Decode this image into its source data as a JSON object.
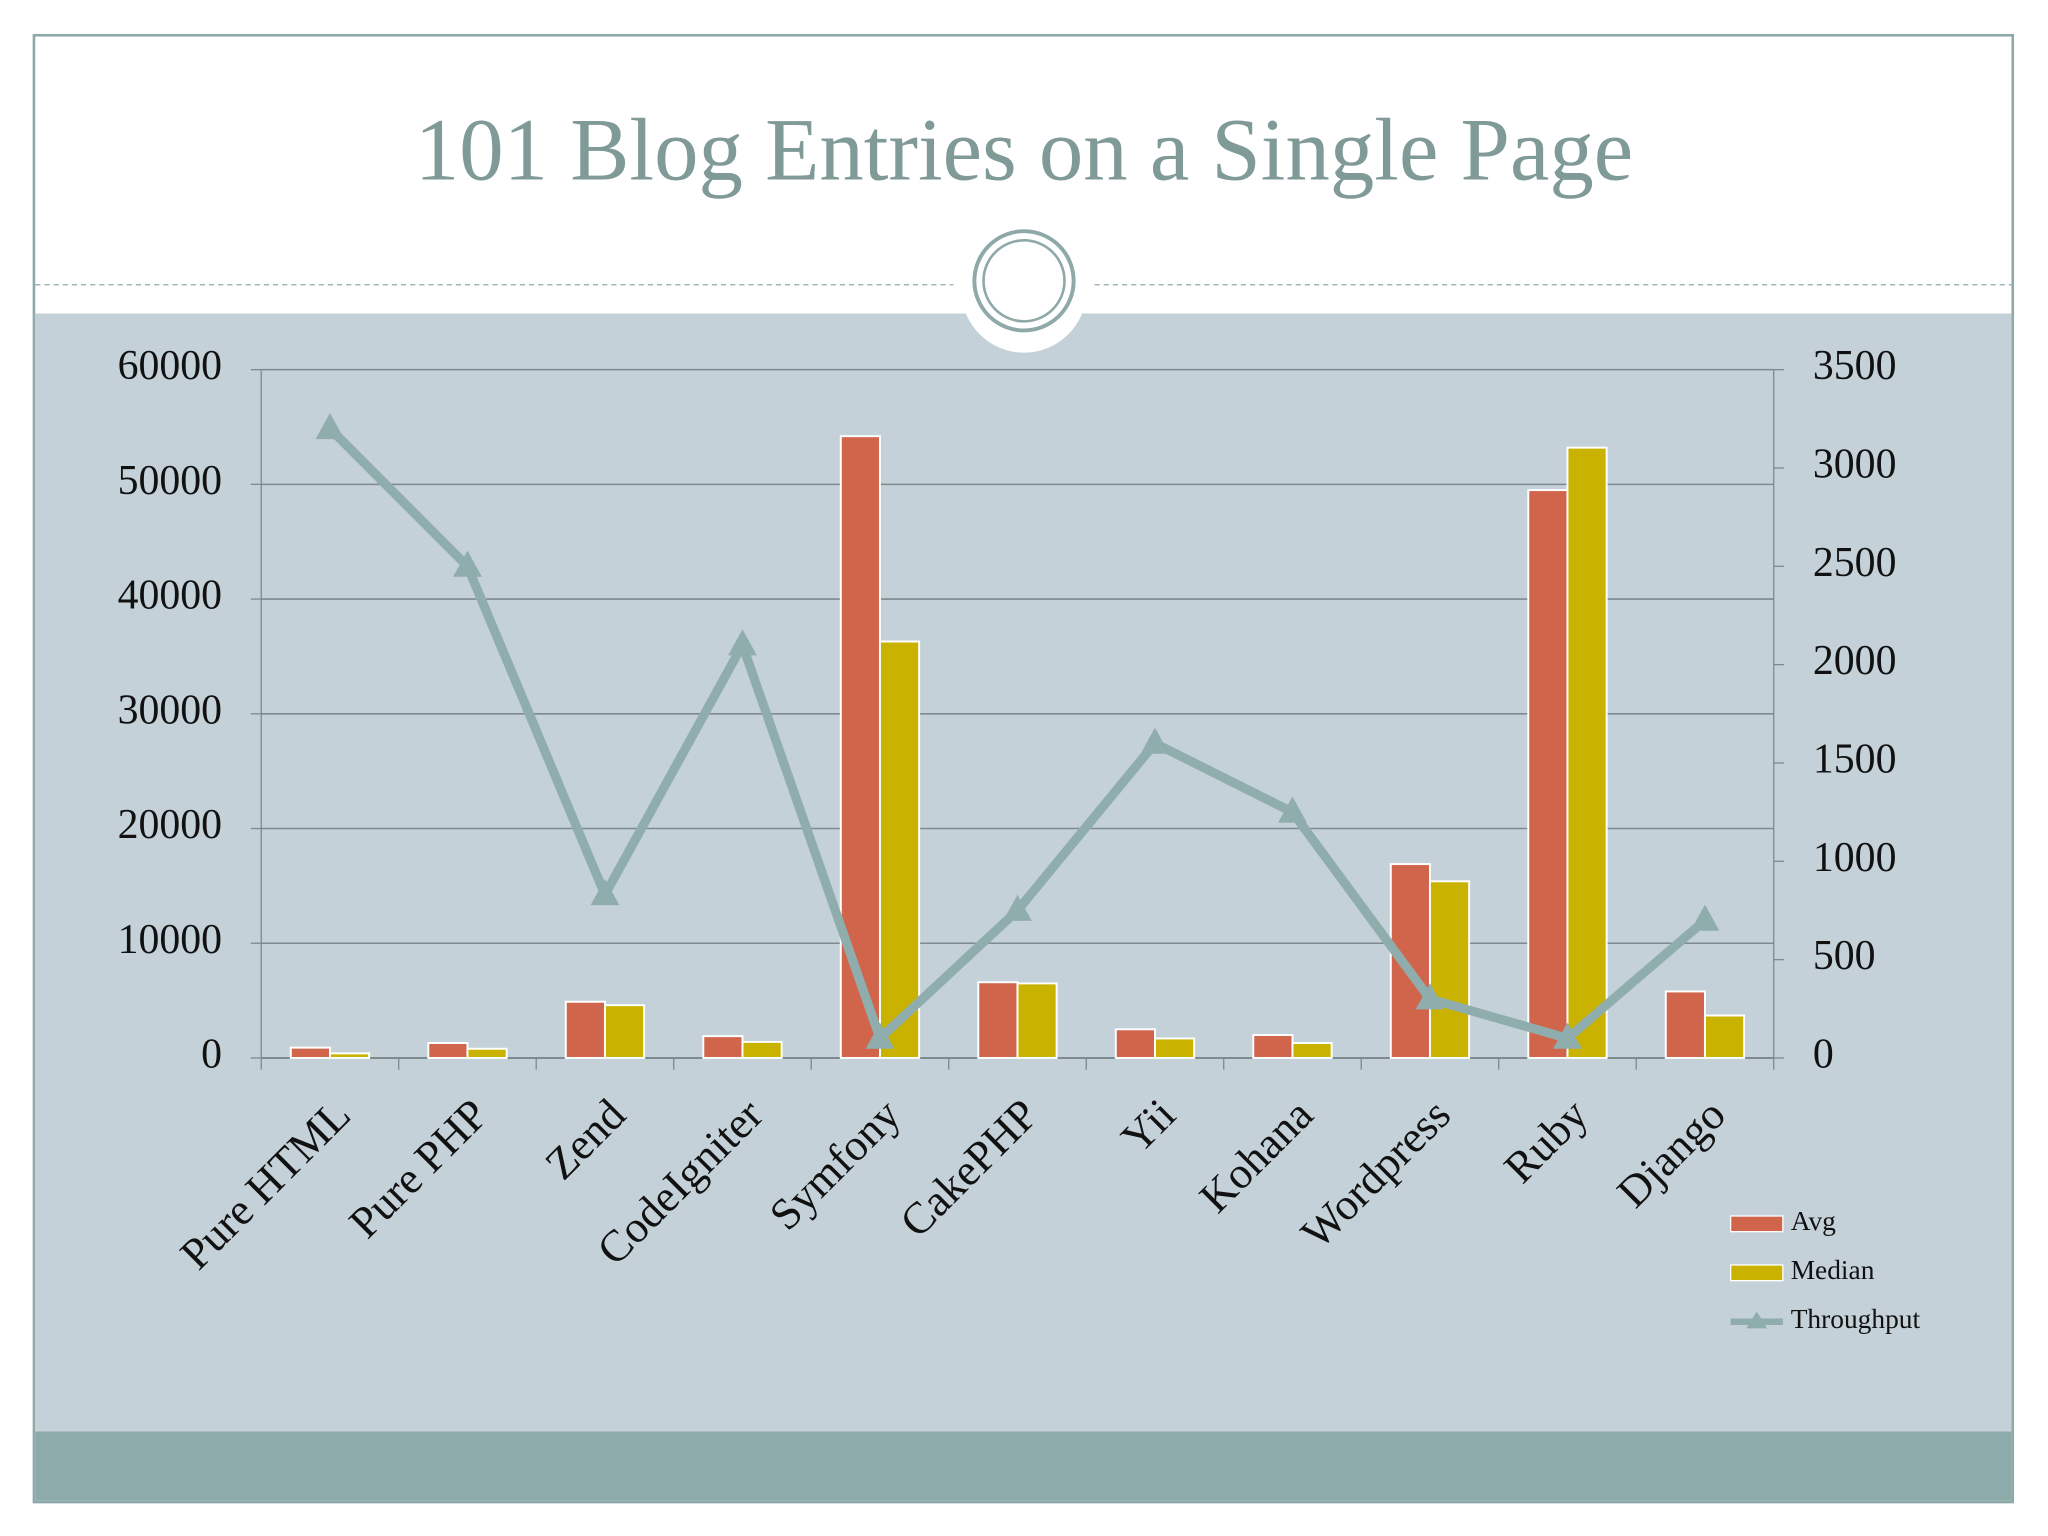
{
  "chart_data": {
    "type": "bar_line",
    "title": "101 Blog Entries on a Single Page",
    "categories": [
      "Pure HTML",
      "Pure PHP",
      "Zend",
      "CodeIgniter",
      "Symfony",
      "CakePHP",
      "Yii",
      "Kohana",
      "Wordpress",
      "Ruby",
      "Django"
    ],
    "series": [
      {
        "name": "Avg",
        "color": "#d0654b",
        "type": "bar",
        "values": [
          900,
          1300,
          4900,
          1900,
          54200,
          6600,
          2500,
          2000,
          16900,
          49500,
          5800
        ]
      },
      {
        "name": "Median",
        "color": "#c9b300",
        "type": "bar",
        "values": [
          400,
          800,
          4600,
          1400,
          36300,
          6500,
          1700,
          1300,
          15400,
          53200,
          3700
        ]
      },
      {
        "name": "Throughput",
        "color": "#8fadad",
        "type": "line",
        "axis": "y2",
        "values": [
          3200,
          2500,
          830,
          2100,
          100,
          750,
          1600,
          1250,
          300,
          100,
          700
        ]
      }
    ],
    "ylim": [
      0,
      60000
    ],
    "yticks": [
      0,
      10000,
      20000,
      30000,
      40000,
      50000,
      60000
    ],
    "y2lim": [
      0,
      3500
    ],
    "y2ticks": [
      0,
      500,
      1000,
      1500,
      2000,
      2500,
      3000,
      3500
    ],
    "grid": true,
    "legend": "bottom-right"
  }
}
